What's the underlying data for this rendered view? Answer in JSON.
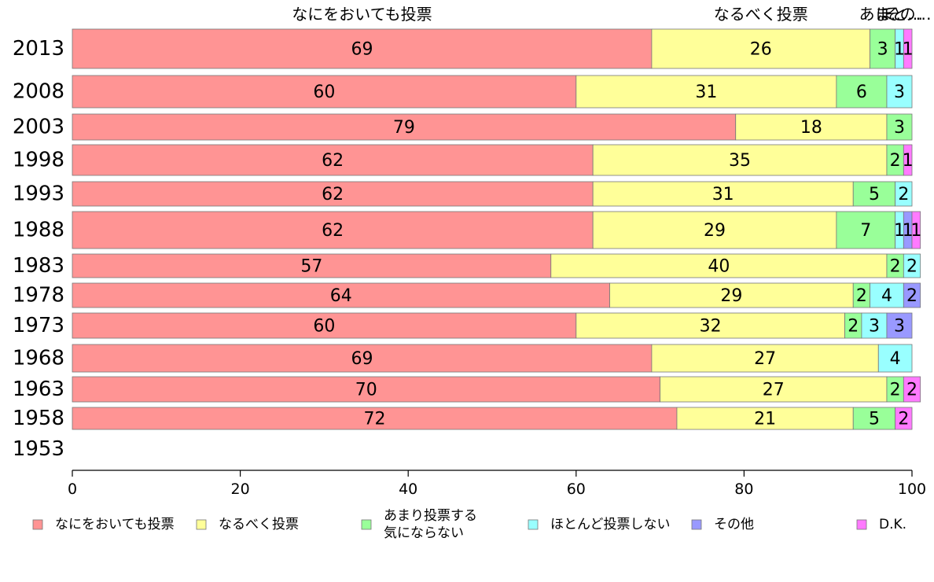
{
  "chart_data": {
    "type": "bar",
    "orientation": "horizontal",
    "stacked": true,
    "title": "",
    "xlabel": "",
    "ylabel": "",
    "xlim": [
      0,
      100
    ],
    "x_ticks": [
      "0",
      "20",
      "40",
      "60",
      "80",
      "100"
    ],
    "grid": false,
    "legend_position": "bottom",
    "top_labels": [
      "なにをおいても投票",
      "なるべく投票",
      "あま…",
      "ほと…",
      "その…"
    ],
    "categories": [
      "2013",
      "2008",
      "2003",
      "1998",
      "1993",
      "1988",
      "1983",
      "1978",
      "1973",
      "1968",
      "1963",
      "1958",
      "1953"
    ],
    "series": [
      {
        "name": "なにをおいても投票",
        "color": "#ff9494",
        "values": [
          69,
          60,
          79,
          62,
          62,
          62,
          57,
          64,
          60,
          69,
          70,
          72,
          null
        ]
      },
      {
        "name": "なるべく投票",
        "color": "#ffff99",
        "values": [
          26,
          31,
          18,
          35,
          31,
          29,
          40,
          29,
          32,
          27,
          27,
          21,
          null
        ]
      },
      {
        "name": "あまり投票する\n気にならない",
        "color": "#99ff99",
        "values": [
          3,
          6,
          3,
          2,
          5,
          7,
          2,
          2,
          2,
          0,
          2,
          5,
          null
        ]
      },
      {
        "name": "ほとんど投票しない",
        "color": "#99ffff",
        "values": [
          1,
          3,
          0,
          0,
          2,
          1,
          2,
          4,
          3,
          4,
          0,
          0,
          null
        ]
      },
      {
        "name": "その他",
        "color": "#9999ff",
        "values": [
          0,
          0,
          0,
          0,
          0,
          1,
          0,
          2,
          3,
          0,
          0,
          0,
          null
        ]
      },
      {
        "name": "D.K.",
        "color": "#ff7aff",
        "values": [
          1,
          0,
          0,
          1,
          0,
          1,
          0,
          0,
          0,
          0,
          2,
          2,
          null
        ]
      }
    ]
  }
}
